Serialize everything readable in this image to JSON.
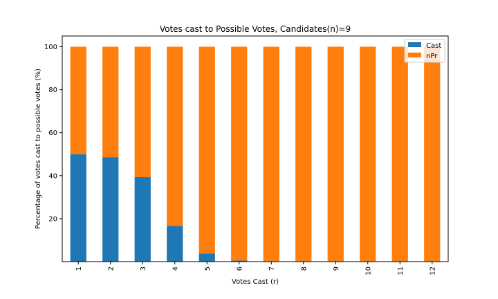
{
  "chart_data": {
    "type": "bar",
    "stacked": true,
    "title": "Votes cast to Possible Votes, Candidates(n)=9",
    "xlabel": "Votes Cast (r)",
    "ylabel": "Percentage of votes cast to possible votes (%)",
    "categories": [
      "1",
      "2",
      "3",
      "4",
      "5",
      "6",
      "7",
      "8",
      "9",
      "10",
      "11",
      "12"
    ],
    "ylim": [
      0,
      105
    ],
    "yticks": [
      20,
      40,
      60,
      80,
      100
    ],
    "series": [
      {
        "name": "Cast",
        "color": "#1f77b4",
        "values": [
          50.0,
          48.6,
          39.3,
          16.6,
          3.8,
          0.5,
          0,
          0,
          0,
          0,
          0,
          0
        ]
      },
      {
        "name": "nPr",
        "color": "#ff7f0e",
        "values": [
          50.0,
          51.4,
          60.7,
          83.4,
          96.2,
          99.5,
          100,
          100,
          100,
          100,
          100,
          100
        ]
      }
    ],
    "legend_position": "top-right",
    "grid": false,
    "xtick_rotation": "vertical"
  }
}
